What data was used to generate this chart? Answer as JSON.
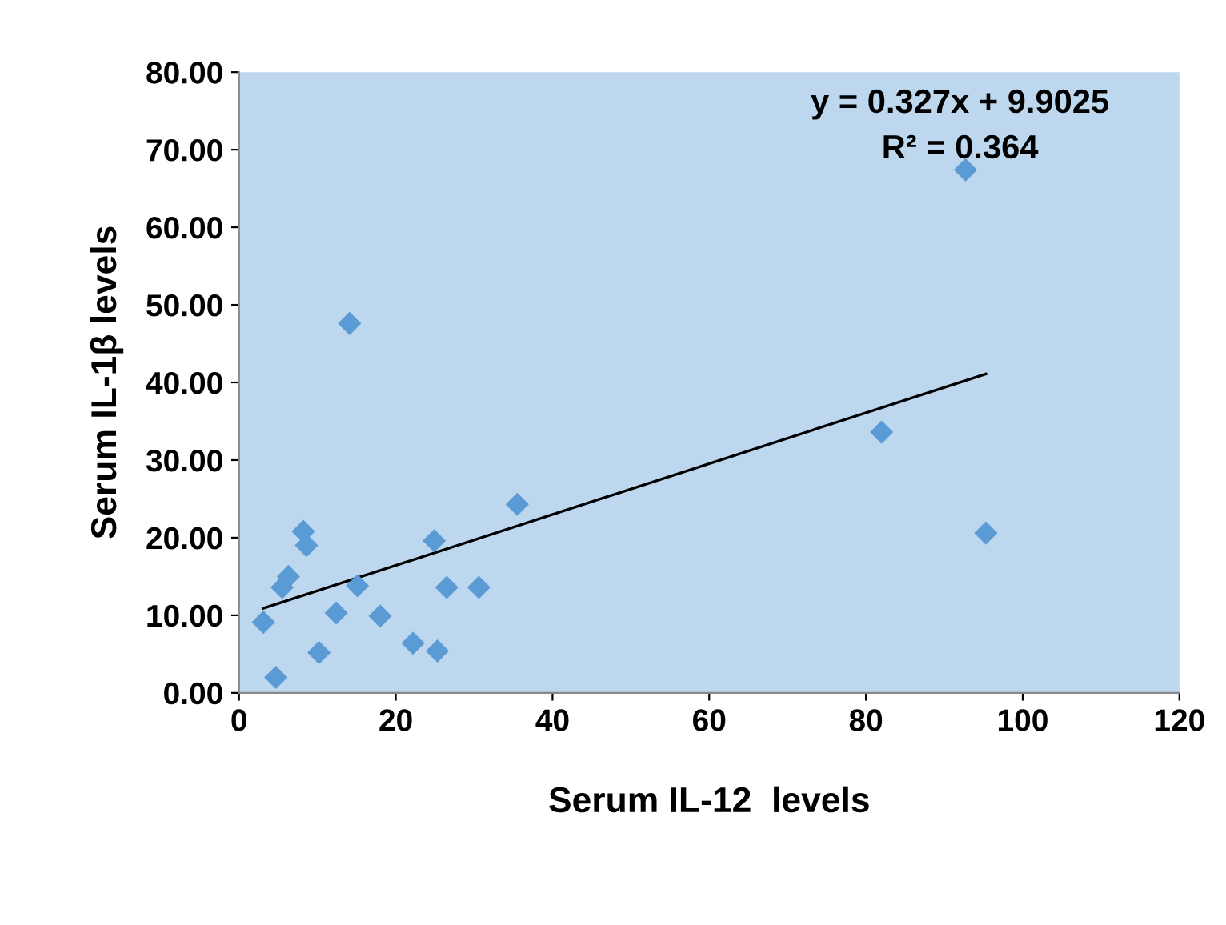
{
  "chart_data": {
    "type": "scatter",
    "xlabel": "Serum IL-12  levels",
    "ylabel": "Serum IL-1β levels",
    "series": [
      {
        "color": "#5b9bd5",
        "marker": "diamond",
        "x": [
          3.1,
          4.7,
          5.5,
          6.3,
          8.2,
          8.6,
          10.2,
          12.4,
          14.1,
          15.1,
          18.0,
          22.2,
          24.9,
          25.3,
          26.5,
          30.6,
          35.5,
          82.0,
          92.7,
          95.3
        ],
        "values": [
          9.1,
          2.0,
          13.6,
          15.0,
          20.8,
          19.0,
          5.2,
          10.3,
          47.6,
          13.8,
          9.9,
          6.4,
          19.6,
          5.4,
          13.6,
          13.6,
          24.3,
          33.6,
          67.4,
          20.6
        ]
      },
      {
        "type": "line",
        "color": "#000000",
        "marker": "none",
        "x": [
          3.1,
          95.3
        ],
        "values": [
          10.9,
          41.1
        ]
      }
    ],
    "annotations": [
      {
        "text": "y = 0.327x + 9.9025\nR² = 0.364",
        "x": 92,
        "y": 68
      }
    ],
    "xlim": [
      0,
      120
    ],
    "xticks": [
      0,
      20,
      40,
      60,
      80,
      100,
      120
    ],
    "ylim": [
      0,
      80
    ],
    "yticks": [
      {
        "value": 0,
        "label": "0.00"
      },
      {
        "value": 10,
        "label": "10.00"
      },
      {
        "value": 20,
        "label": "20.00"
      },
      {
        "value": 30,
        "label": "30.00"
      },
      {
        "value": 40,
        "label": "40.00"
      },
      {
        "value": 50,
        "label": "50.00"
      },
      {
        "value": 60,
        "label": "60.00"
      },
      {
        "value": 70,
        "label": "70.00"
      },
      {
        "value": 80,
        "label": "80.00"
      }
    ],
    "grid": false,
    "legend": false
  }
}
